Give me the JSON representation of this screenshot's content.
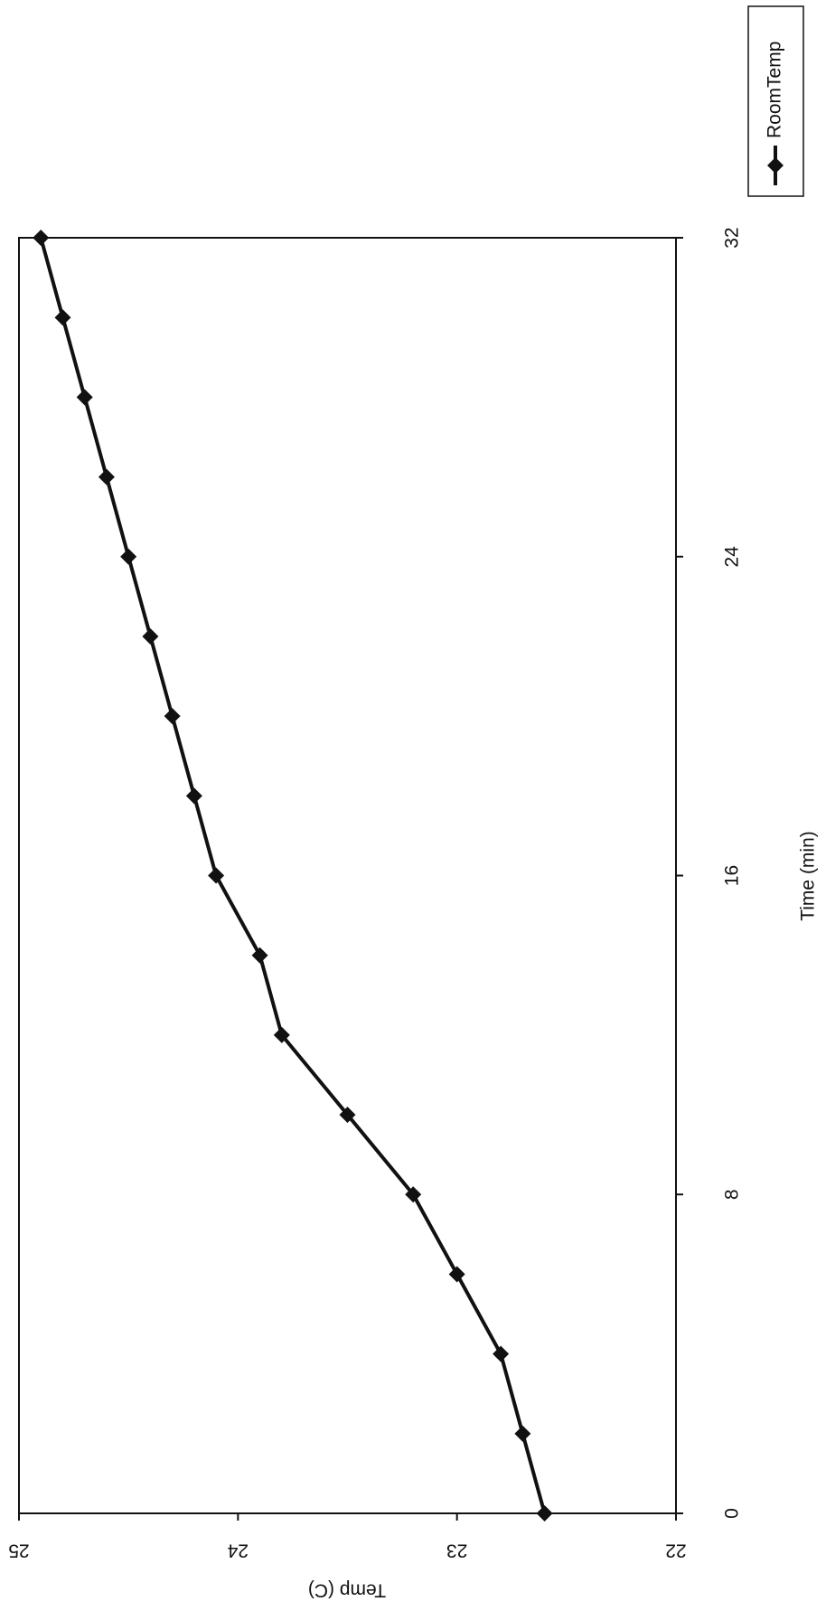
{
  "chart_data": {
    "type": "line",
    "x_label": "Time (min)",
    "y_label": "Temp (C)",
    "x": [
      0,
      2,
      4,
      6,
      8,
      10,
      12,
      14,
      16,
      18,
      20,
      22,
      24,
      26,
      28,
      30,
      32
    ],
    "series": [
      {
        "name": "RoomTemp",
        "color": "#111111",
        "values": [
          22.6,
          22.7,
          22.8,
          23.0,
          23.2,
          23.5,
          23.8,
          23.9,
          24.1,
          24.2,
          24.3,
          24.4,
          24.5,
          24.6,
          24.7,
          24.8,
          24.9
        ]
      }
    ],
    "xlim": [
      0,
      32
    ],
    "xticks": [
      0,
      8,
      16,
      24,
      32
    ],
    "ylim": [
      22,
      25
    ],
    "yticks": [
      22,
      23,
      24,
      25
    ],
    "grid": false,
    "legend": "right"
  }
}
